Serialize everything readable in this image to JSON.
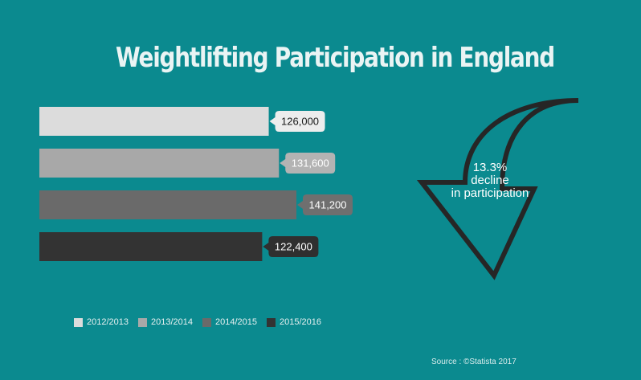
{
  "chart_data": {
    "type": "bar",
    "orientation": "horizontal",
    "title": "Weightlifting Participation in England",
    "categories": [
      "2012/2013",
      "2013/2014",
      "2014/2015",
      "2015/2016"
    ],
    "values": [
      126000,
      131600,
      141200,
      122400
    ],
    "data_labels": [
      "126,000",
      "131,600",
      "141,200",
      "122,400"
    ],
    "colors": [
      "#dcdcdc",
      "#a8a8a8",
      "#6a6a6a",
      "#333333"
    ],
    "legend": {
      "placement": "bottom-left",
      "entries": [
        "2012/2013",
        "2013/2014",
        "2014/2015",
        "2015/2016"
      ]
    },
    "grid": false
  },
  "annotation": {
    "line1": "13.3%",
    "line2": "decline",
    "line3": "in participation"
  },
  "source": "Source : ©Statista 2017",
  "colors": {
    "background": "#0b8a8f",
    "arrow_stroke": "#262626",
    "label_callout": "#ededed",
    "dark_callout": "#2f2f2f"
  }
}
